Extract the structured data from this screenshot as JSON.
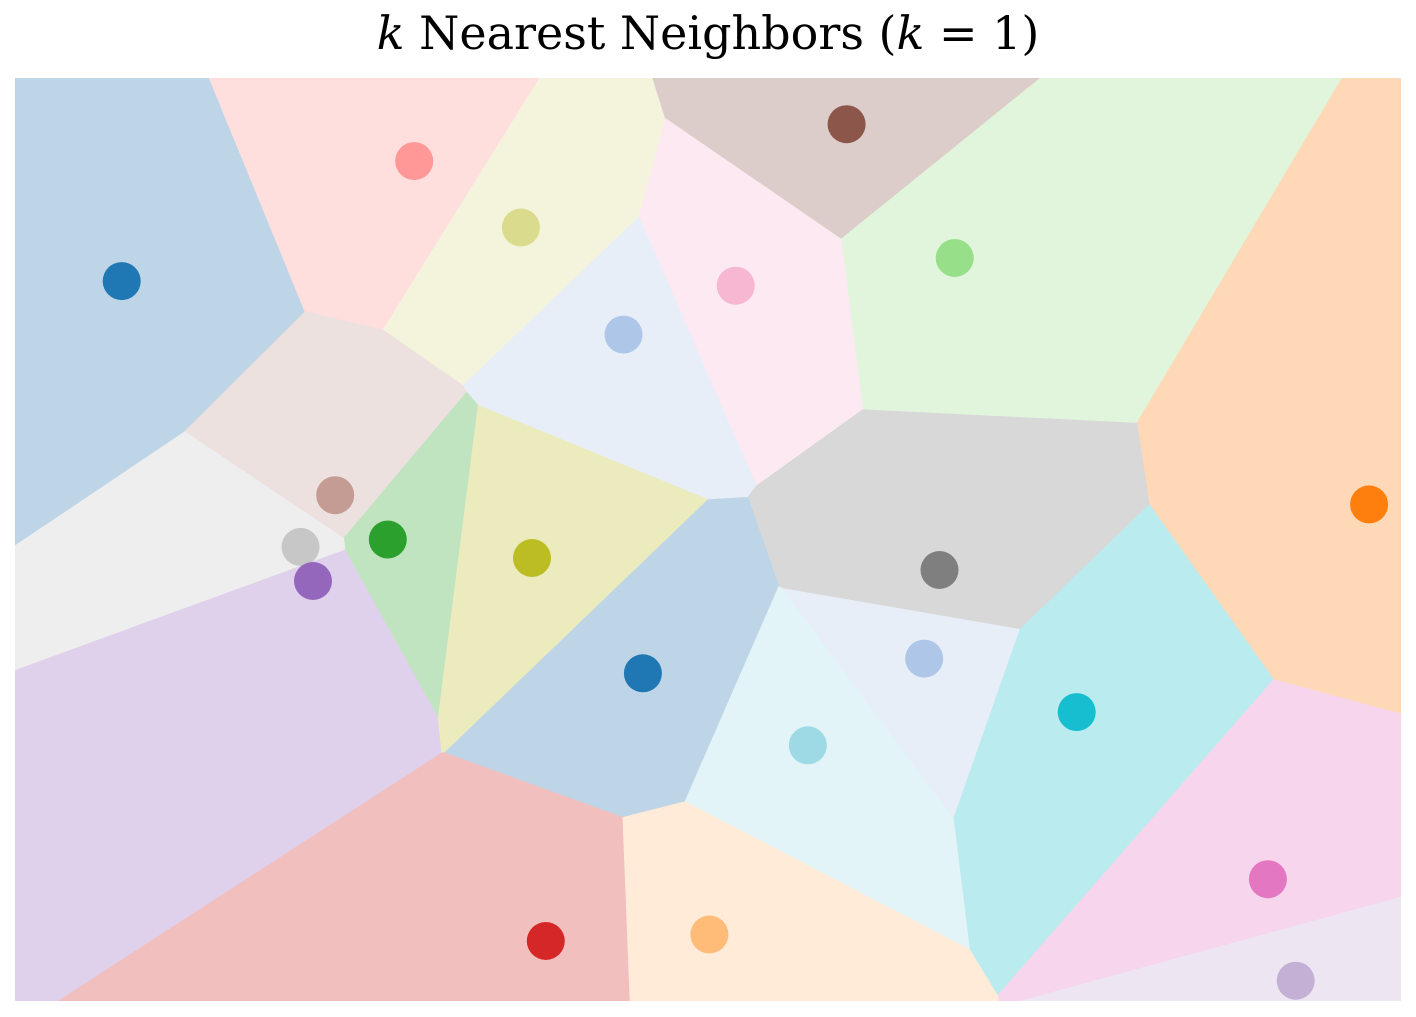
{
  "chart_data": {
    "type": "scatter",
    "title": {
      "prefix": "k",
      "text": " Nearest Neighbors (",
      "var": "k",
      "suffix": " = 1)"
    },
    "subtitle": "",
    "xlabel": "",
    "ylabel": "",
    "axes_visible": false,
    "grid": false,
    "legend": "none",
    "xlim": [
      0,
      1
    ],
    "ylim": [
      0,
      1
    ],
    "points": [
      {
        "x": 0.077,
        "y": 0.78,
        "color": "#1f77b4",
        "region": "#bed5e7"
      },
      {
        "x": 0.288,
        "y": 0.91,
        "color": "#ff9896",
        "region": "#ffdfde"
      },
      {
        "x": 0.365,
        "y": 0.838,
        "color": "#dbdb8d",
        "region": "#f4f4dc"
      },
      {
        "x": 0.6,
        "y": 0.95,
        "color": "#8c564b",
        "region": "#dccdca"
      },
      {
        "x": 0.678,
        "y": 0.805,
        "color": "#98df8a",
        "region": "#e0f5dc"
      },
      {
        "x": 0.52,
        "y": 0.775,
        "color": "#f7b6d2",
        "region": "#fde9f2"
      },
      {
        "x": 0.439,
        "y": 0.722,
        "color": "#aec7e8",
        "region": "#e7eef8"
      },
      {
        "x": 0.977,
        "y": 0.538,
        "color": "#ff7f0e",
        "region": "#ffd8b7"
      },
      {
        "x": 0.231,
        "y": 0.548,
        "color": "#c49c94",
        "region": "#ede1df"
      },
      {
        "x": 0.269,
        "y": 0.5,
        "color": "#2ca02c",
        "region": "#c0e3c0"
      },
      {
        "x": 0.206,
        "y": 0.492,
        "color": "#c7c7c7",
        "region": "#eeeeee"
      },
      {
        "x": 0.215,
        "y": 0.455,
        "color": "#9467bd",
        "region": "#dfd1eb"
      },
      {
        "x": 0.373,
        "y": 0.48,
        "color": "#bcbd22",
        "region": "#ebebbe"
      },
      {
        "x": 0.667,
        "y": 0.467,
        "color": "#7f7f7f",
        "region": "#d8d8d8"
      },
      {
        "x": 0.453,
        "y": 0.355,
        "color": "#1f77b4",
        "region": "#bed5e7"
      },
      {
        "x": 0.656,
        "y": 0.371,
        "color": "#aec7e8",
        "region": "#e7eef8"
      },
      {
        "x": 0.766,
        "y": 0.313,
        "color": "#17becf",
        "region": "#b9ebef"
      },
      {
        "x": 0.572,
        "y": 0.277,
        "color": "#9edae5",
        "region": "#e2f4f7"
      },
      {
        "x": 0.904,
        "y": 0.132,
        "color": "#e377c2",
        "region": "#f7d6ed"
      },
      {
        "x": 0.383,
        "y": 0.065,
        "color": "#d62728",
        "region": "#f2bfbf"
      },
      {
        "x": 0.501,
        "y": 0.072,
        "color": "#ffbb78",
        "region": "#ffebd8"
      },
      {
        "x": 0.924,
        "y": 0.022,
        "color": "#c5b0d5",
        "region": "#ede6f2"
      }
    ]
  }
}
